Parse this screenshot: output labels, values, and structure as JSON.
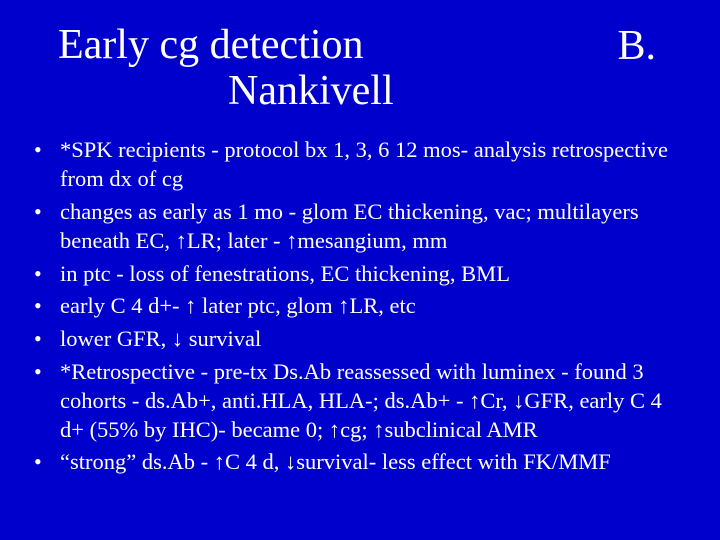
{
  "background_color": "#0000cc",
  "text_color": "#ffffff",
  "font_family": "Times New Roman",
  "title": {
    "line1": "Early cg detection",
    "line2": "Nankivell",
    "right": "B.",
    "fontsize": 42
  },
  "bullets_fontsize": 22.5,
  "bullets": [
    "*SPK recipients - protocol bx 1, 3, 6 12 mos- analysis retrospective from dx of cg",
    "changes as early as 1 mo - glom EC thickening, vac; multilayers beneath EC, ↑LR; later - ↑mesangium, mm",
    "in ptc - loss of fenestrations, EC thickening, BML",
    "early C 4 d+- ↑ later ptc, glom ↑LR, etc",
    "lower GFR, ↓ survival",
    "*Retrospective - pre-tx Ds.Ab reassessed with luminex - found 3 cohorts - ds.Ab+, anti.HLA, HLA-; ds.Ab+ - ↑Cr, ↓GFR, early C 4 d+ (55% by IHC)- became 0; ↑cg; ↑subclinical AMR",
    "“strong” ds.Ab - ↑C 4 d, ↓survival- less effect with FK/MMF"
  ]
}
